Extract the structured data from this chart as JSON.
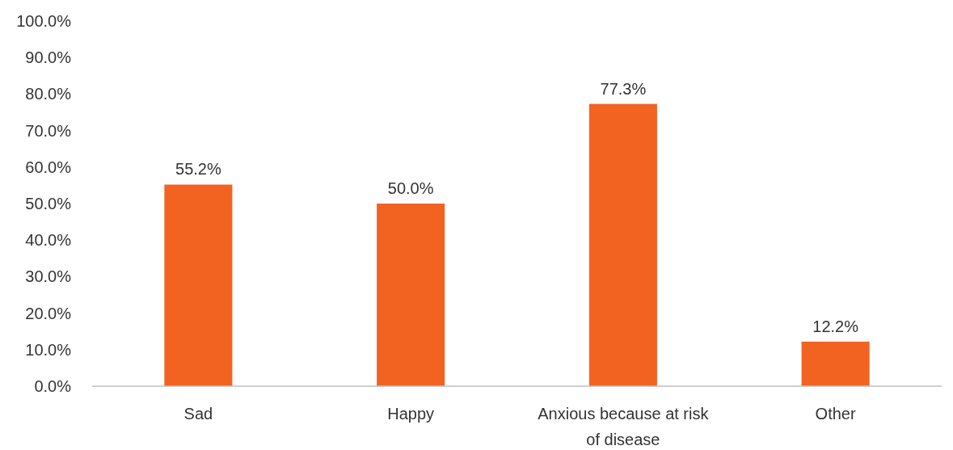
{
  "chart_data": {
    "type": "bar",
    "categories": [
      "Sad",
      "Happy",
      "Anxious because at risk of disease",
      "Other"
    ],
    "values": [
      55.2,
      50.0,
      77.3,
      12.2
    ],
    "value_labels": [
      "55.2%",
      "50.0%",
      "77.3%",
      "12.2%"
    ],
    "color": "#f26322",
    "ylim": [
      0,
      100
    ],
    "yticks": [
      {
        "value": 0,
        "label": "0.0%"
      },
      {
        "value": 10,
        "label": "10.0%"
      },
      {
        "value": 20,
        "label": "20.0%"
      },
      {
        "value": 30,
        "label": "30.0%"
      },
      {
        "value": 40,
        "label": "40.0%"
      },
      {
        "value": 50,
        "label": "50.0%"
      },
      {
        "value": 60,
        "label": "60.0%"
      },
      {
        "value": 70,
        "label": "70.0%"
      },
      {
        "value": 80,
        "label": "80.0%"
      },
      {
        "value": 90,
        "label": "90.0%"
      },
      {
        "value": 100,
        "label": "100.0%"
      }
    ],
    "grid": false
  }
}
